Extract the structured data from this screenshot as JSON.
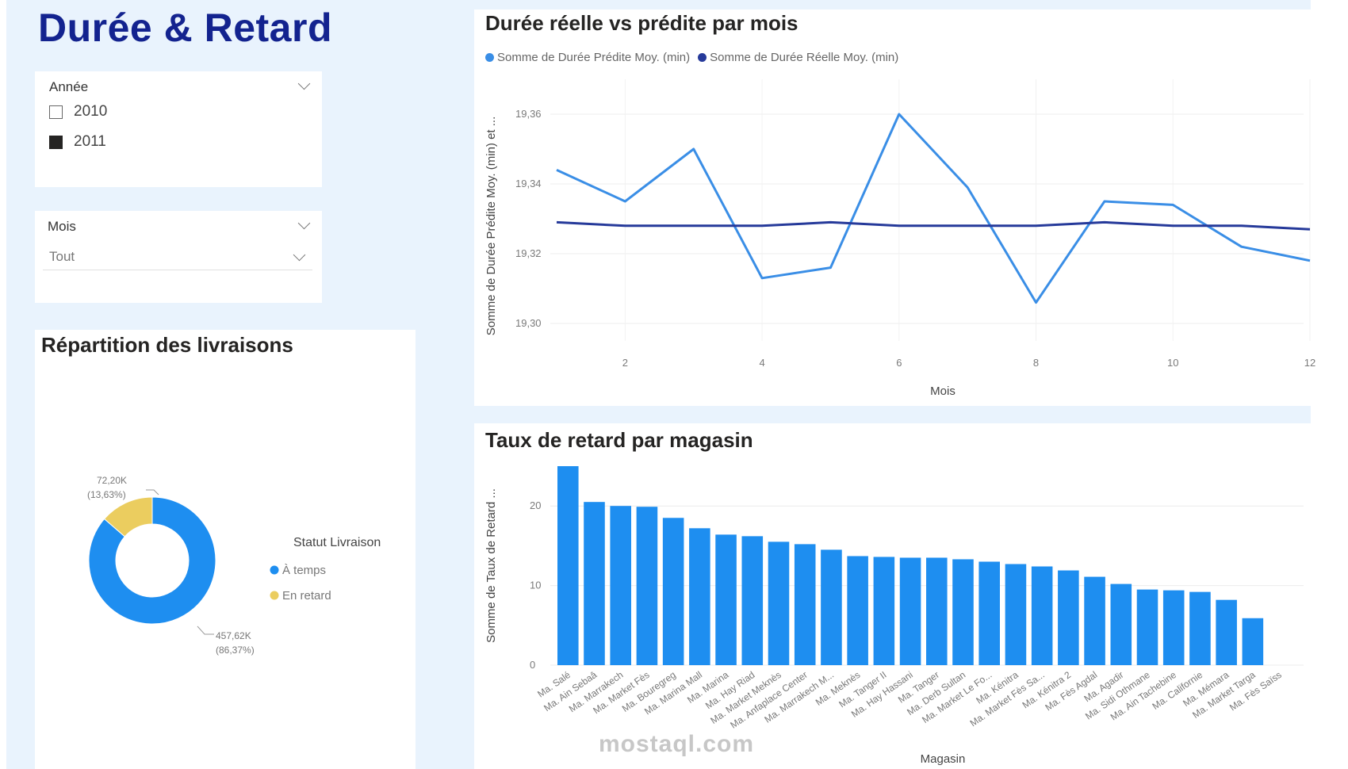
{
  "page_title": "Durée & Retard",
  "slicer_year": {
    "title": "Année",
    "options": [
      {
        "label": "2010",
        "checked": false
      },
      {
        "label": "2011",
        "checked": true
      }
    ]
  },
  "slicer_month": {
    "title": "Mois",
    "selected": "Tout"
  },
  "donut_card": {
    "title": "Répartition des livraisons",
    "legend_title": "Statut Livraison",
    "labels": [
      {
        "value": "72,20K",
        "pct": "(13,63%)"
      },
      {
        "value": "457,62K",
        "pct": "(86,37%)"
      }
    ]
  },
  "line_card": {
    "title": "Durée réelle vs prédite par mois",
    "legend": [
      {
        "name": "Somme de Durée Prédite Moy. (min)",
        "color": "#3a8ee6"
      },
      {
        "name": "Somme de Durée Réelle Moy. (min)",
        "color": "#263a9a"
      }
    ]
  },
  "bar_card": {
    "title": "Taux de retard par magasin"
  },
  "watermark": "mostaql.com",
  "colors": {
    "accent": "#1e8ef0",
    "late": "#ebcd5f",
    "dark_line": "#263a9a",
    "light_line": "#3a8ee6",
    "title": "#13238f"
  },
  "chart_data": [
    {
      "type": "pie",
      "title": "Répartition des livraisons",
      "legend_title": "Statut Livraison",
      "categories": [
        "À temps",
        "En retard"
      ],
      "values": [
        457.62,
        72.2
      ],
      "value_labels": [
        "457,62K",
        "72,20K"
      ],
      "percent_labels": [
        "(86,37%)",
        "(13,63%)"
      ],
      "colors": [
        "#1e8ef0",
        "#ebcd5f"
      ],
      "donut": true,
      "legend_position": "right"
    },
    {
      "type": "line",
      "title": "Durée réelle vs prédite par mois",
      "xlabel": "Mois",
      "ylabel": "Somme de Durée Prédite Moy. (min) et ...",
      "x": [
        1,
        2,
        3,
        4,
        5,
        6,
        7,
        8,
        9,
        10,
        11,
        12
      ],
      "x_ticks": [
        2,
        4,
        6,
        8,
        10,
        12
      ],
      "ylim": [
        19.295,
        19.37
      ],
      "y_ticks": [
        19.3,
        19.32,
        19.34,
        19.36
      ],
      "y_tick_labels": [
        "19,30",
        "19,32",
        "19,34",
        "19,36"
      ],
      "series": [
        {
          "name": "Somme de Durée Prédite Moy. (min)",
          "color": "#3a8ee6",
          "values": [
            19.344,
            19.335,
            19.35,
            19.313,
            19.316,
            19.36,
            19.339,
            19.306,
            19.335,
            19.334,
            19.322,
            19.318
          ]
        },
        {
          "name": "Somme de Durée Réelle Moy. (min)",
          "color": "#263a9a",
          "values": [
            19.329,
            19.328,
            19.328,
            19.328,
            19.329,
            19.328,
            19.328,
            19.328,
            19.329,
            19.328,
            19.328,
            19.327
          ]
        }
      ],
      "grid": true,
      "legend_position": "top-left"
    },
    {
      "type": "bar",
      "title": "Taux de retard par magasin",
      "xlabel": "Magasin",
      "ylabel": "Somme de Taux de Retard ...",
      "ylim": [
        0,
        25
      ],
      "y_ticks": [
        0,
        10,
        20
      ],
      "categories": [
        "Ma. Salé",
        "Ma. Ain Sebaâ",
        "Ma. Marrakech",
        "Ma. Market Fès",
        "Ma. Bouregreg",
        "Ma. Marina Mall",
        "Ma. Marina",
        "Ma. Hay Riad",
        "Ma. Market Meknès",
        "Ma. Anfaplace Center",
        "Ma. Marrakech M...",
        "Ma. Meknès",
        "Ma. Tanger II",
        "Ma. Hay Hassani",
        "Ma. Tanger",
        "Ma. Derb Sultan",
        "Ma. Market Le Fo...",
        "Ma. Kénitra",
        "Ma. Market Fès Sa...",
        "Ma. Kénitra 2",
        "Ma. Fès Agdal",
        "Ma. Agadir",
        "Ma. Sidi Othmane",
        "Ma. Ain Tachebine",
        "Ma. Californie",
        "Ma. Mémara",
        "Ma. Market Targa",
        "Ma. Fès Saïss"
      ],
      "values": [
        25.0,
        20.5,
        20.0,
        19.9,
        18.5,
        17.2,
        16.4,
        16.2,
        15.5,
        15.2,
        14.5,
        13.7,
        13.6,
        13.5,
        13.5,
        13.3,
        13.0,
        12.7,
        12.4,
        11.9,
        11.1,
        10.2,
        9.5,
        9.4,
        9.2,
        8.2,
        5.9,
        0
      ],
      "color": "#1e8ef0",
      "grid": true
    }
  ]
}
